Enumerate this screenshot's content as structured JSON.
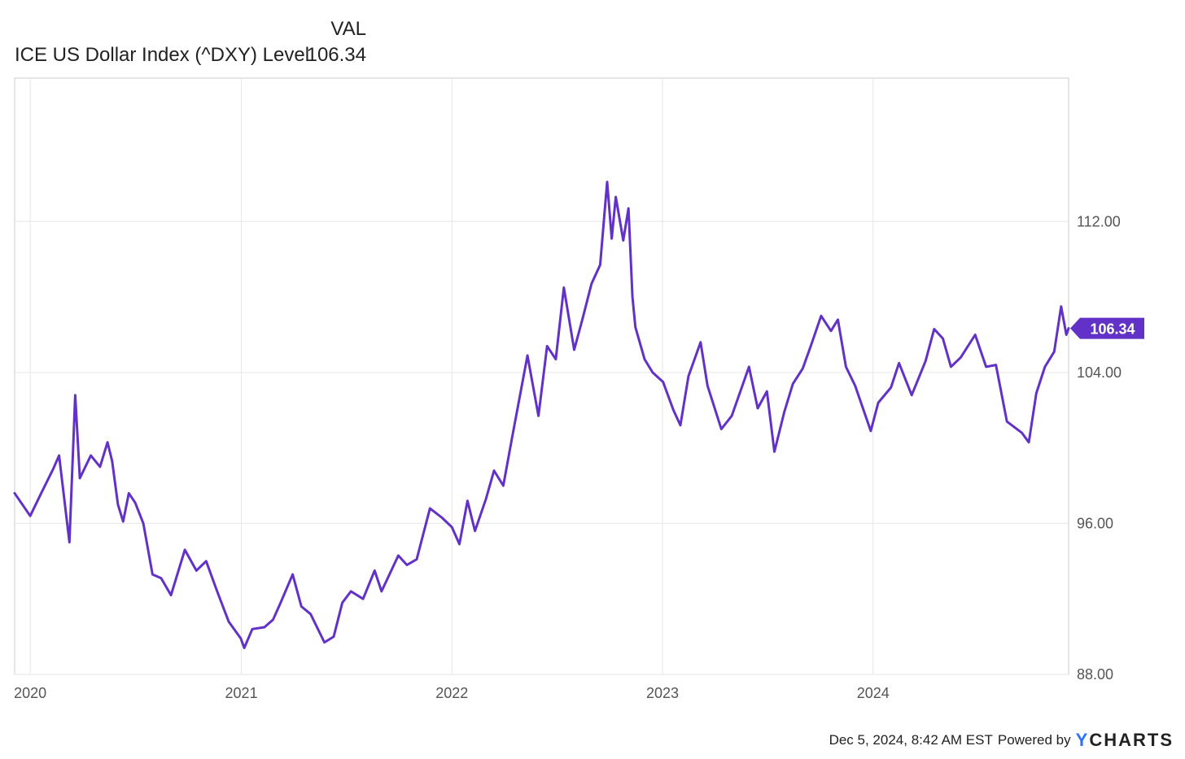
{
  "legend": {
    "column_header": "VAL",
    "series_name": "ICE US Dollar Index (^DXY) Level",
    "series_value": "106.34"
  },
  "footer": {
    "timestamp": "Dec 5, 2024, 8:42 AM EST",
    "powered_by": "Powered by",
    "brand_y": "Y",
    "brand_rest": "CHARTS"
  },
  "colors": {
    "series": "#6231c8",
    "grid": "#e6e6e6",
    "axis": "#cccccc"
  },
  "chart_data": {
    "type": "line",
    "title": "",
    "xlabel": "",
    "ylabel": "",
    "x_tick_labels": [
      "2020",
      "2021",
      "2022",
      "2023",
      "2024"
    ],
    "y_tick_labels": [
      "88.00",
      "96.00",
      "104.00",
      "112.00"
    ],
    "ylim": [
      88,
      119.6
    ],
    "xlim": [
      "2019-12-05",
      "2024-12-05"
    ],
    "grid": true,
    "last_value_label": "106.34",
    "series": [
      {
        "name": "ICE US Dollar Index (^DXY) Level",
        "points": [
          [
            "2019-12-05",
            97.6
          ],
          [
            "2020-01-01",
            96.4
          ],
          [
            "2020-01-20",
            97.6
          ],
          [
            "2020-02-10",
            98.9
          ],
          [
            "2020-02-20",
            99.6
          ],
          [
            "2020-03-09",
            95.0
          ],
          [
            "2020-03-19",
            102.8
          ],
          [
            "2020-03-27",
            98.4
          ],
          [
            "2020-04-15",
            99.6
          ],
          [
            "2020-05-01",
            99.0
          ],
          [
            "2020-05-14",
            100.3
          ],
          [
            "2020-05-22",
            99.3
          ],
          [
            "2020-06-01",
            97.0
          ],
          [
            "2020-06-10",
            96.1
          ],
          [
            "2020-06-20",
            97.6
          ],
          [
            "2020-07-01",
            97.1
          ],
          [
            "2020-07-15",
            96.0
          ],
          [
            "2020-07-31",
            93.3
          ],
          [
            "2020-08-15",
            93.1
          ],
          [
            "2020-09-01",
            92.2
          ],
          [
            "2020-09-25",
            94.6
          ],
          [
            "2020-10-15",
            93.5
          ],
          [
            "2020-11-01",
            94.0
          ],
          [
            "2020-11-20",
            92.4
          ],
          [
            "2020-12-10",
            90.8
          ],
          [
            "2020-12-31",
            89.9
          ],
          [
            "2021-01-06",
            89.4
          ],
          [
            "2021-01-20",
            90.4
          ],
          [
            "2021-02-10",
            90.5
          ],
          [
            "2021-02-25",
            90.9
          ],
          [
            "2021-03-10",
            91.8
          ],
          [
            "2021-03-31",
            93.3
          ],
          [
            "2021-04-15",
            91.6
          ],
          [
            "2021-05-01",
            91.2
          ],
          [
            "2021-05-25",
            89.7
          ],
          [
            "2021-06-10",
            90.0
          ],
          [
            "2021-06-25",
            91.8
          ],
          [
            "2021-07-10",
            92.4
          ],
          [
            "2021-07-31",
            92.0
          ],
          [
            "2021-08-20",
            93.5
          ],
          [
            "2021-09-01",
            92.4
          ],
          [
            "2021-09-30",
            94.3
          ],
          [
            "2021-10-15",
            93.8
          ],
          [
            "2021-11-01",
            94.1
          ],
          [
            "2021-11-24",
            96.8
          ],
          [
            "2021-12-15",
            96.3
          ],
          [
            "2022-01-01",
            95.8
          ],
          [
            "2022-01-14",
            94.9
          ],
          [
            "2022-01-28",
            97.2
          ],
          [
            "2022-02-10",
            95.6
          ],
          [
            "2022-03-01",
            97.3
          ],
          [
            "2022-03-15",
            98.8
          ],
          [
            "2022-03-31",
            98.0
          ],
          [
            "2022-04-15",
            100.5
          ],
          [
            "2022-05-12",
            104.9
          ],
          [
            "2022-05-31",
            101.7
          ],
          [
            "2022-06-15",
            105.4
          ],
          [
            "2022-06-30",
            104.7
          ],
          [
            "2022-07-14",
            108.5
          ],
          [
            "2022-08-01",
            105.2
          ],
          [
            "2022-08-15",
            106.8
          ],
          [
            "2022-08-31",
            108.7
          ],
          [
            "2022-09-15",
            109.7
          ],
          [
            "2022-09-27",
            114.1
          ],
          [
            "2022-10-05",
            111.1
          ],
          [
            "2022-10-12",
            113.3
          ],
          [
            "2022-10-25",
            111.0
          ],
          [
            "2022-11-03",
            112.7
          ],
          [
            "2022-11-10",
            108.0
          ],
          [
            "2022-11-15",
            106.4
          ],
          [
            "2022-12-01",
            104.7
          ],
          [
            "2022-12-15",
            104.0
          ],
          [
            "2023-01-02",
            103.5
          ],
          [
            "2023-01-20",
            102.0
          ],
          [
            "2023-02-01",
            101.2
          ],
          [
            "2023-02-15",
            103.8
          ],
          [
            "2023-03-08",
            105.6
          ],
          [
            "2023-03-20",
            103.3
          ],
          [
            "2023-04-13",
            101.0
          ],
          [
            "2023-05-01",
            101.7
          ],
          [
            "2023-05-31",
            104.3
          ],
          [
            "2023-06-15",
            102.1
          ],
          [
            "2023-07-01",
            103.0
          ],
          [
            "2023-07-14",
            99.8
          ],
          [
            "2023-07-31",
            101.9
          ],
          [
            "2023-08-15",
            103.4
          ],
          [
            "2023-09-01",
            104.2
          ],
          [
            "2023-09-15",
            105.4
          ],
          [
            "2023-10-03",
            107.0
          ],
          [
            "2023-10-20",
            106.2
          ],
          [
            "2023-11-01",
            106.8
          ],
          [
            "2023-11-15",
            104.3
          ],
          [
            "2023-12-01",
            103.3
          ],
          [
            "2023-12-28",
            100.9
          ],
          [
            "2024-01-10",
            102.4
          ],
          [
            "2024-02-01",
            103.2
          ],
          [
            "2024-02-15",
            104.5
          ],
          [
            "2024-03-08",
            102.8
          ],
          [
            "2024-04-01",
            104.6
          ],
          [
            "2024-04-16",
            106.3
          ],
          [
            "2024-05-01",
            105.8
          ],
          [
            "2024-05-15",
            104.3
          ],
          [
            "2024-06-01",
            104.8
          ],
          [
            "2024-06-26",
            106.0
          ],
          [
            "2024-07-15",
            104.3
          ],
          [
            "2024-08-01",
            104.4
          ],
          [
            "2024-08-20",
            101.4
          ],
          [
            "2024-09-15",
            100.8
          ],
          [
            "2024-09-27",
            100.3
          ],
          [
            "2024-10-10",
            102.9
          ],
          [
            "2024-10-25",
            104.3
          ],
          [
            "2024-11-10",
            105.1
          ],
          [
            "2024-11-22",
            107.5
          ],
          [
            "2024-12-01",
            106.0
          ],
          [
            "2024-12-05",
            106.34
          ]
        ]
      }
    ]
  }
}
